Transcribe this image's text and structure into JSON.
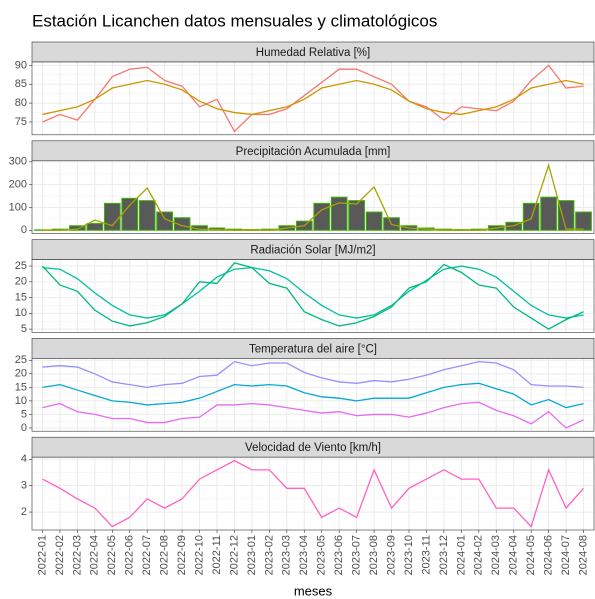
{
  "chart_data": {
    "type": "line",
    "title": "Estación Licanchen datos mensuales y climatológicos",
    "x_label": "meses",
    "categories": [
      "2022-01",
      "2022-02",
      "2022-03",
      "2022-04",
      "2022-05",
      "2022-06",
      "2022-07",
      "2022-08",
      "2022-09",
      "2022-10",
      "2022-11",
      "2022-12",
      "2023-01",
      "2023-02",
      "2023-03",
      "2023-04",
      "2023-05",
      "2023-06",
      "2023-07",
      "2023-08",
      "2023-09",
      "2023-10",
      "2023-11",
      "2023-12",
      "2024-01",
      "2024-02",
      "2024-03",
      "2024-04",
      "2024-05",
      "2024-06",
      "2024-07",
      "2024-08"
    ],
    "grid": true,
    "panels": [
      {
        "title": "Humedad Relativa [%]",
        "ylim": [
          71.6,
          90.9
        ],
        "yticks": [
          75,
          80,
          85,
          90
        ],
        "series": [
          {
            "type": "line",
            "color": "#F8766D",
            "values": [
              75,
              77,
              75.5,
              81,
              87,
              89,
              89.5,
              86,
              84.5,
              79,
              81,
              72.5,
              77,
              77,
              78.5,
              82,
              85.5,
              89,
              89,
              87,
              85,
              80.5,
              79,
              75.5,
              79,
              78.5,
              78,
              80.5,
              86,
              90,
              84,
              84.5
            ]
          },
          {
            "type": "line",
            "color": "#CD9600",
            "values": [
              77,
              78,
              79,
              81,
              84,
              85,
              86,
              85,
              83.5,
              80.5,
              78.5,
              77.5,
              77,
              78,
              79,
              81,
              84,
              85,
              86,
              85,
              83.5,
              80.5,
              78.5,
              77.5,
              77,
              78,
              79,
              81,
              84,
              85,
              86,
              85
            ]
          }
        ]
      },
      {
        "title": "Precipitación Acumulada [mm]",
        "ylim": [
          -14.5,
          304.5
        ],
        "yticks": [
          0,
          100,
          200,
          300
        ],
        "series": [
          {
            "type": "bar",
            "color": "#595959",
            "border": "#39B600",
            "values": [
              2,
              5,
              20,
              30,
              118,
              140,
              130,
              80,
              55,
              20,
              10,
              5,
              3,
              5,
              20,
              40,
              118,
              145,
              130,
              80,
              55,
              20,
              10,
              5,
              3,
              5,
              20,
              35,
              118,
              145,
              130,
              80
            ]
          },
          {
            "type": "line",
            "color": "#A3A500",
            "values": [
              0,
              0,
              5,
              45,
              20,
              110,
              185,
              50,
              20,
              5,
              2,
              0,
              0,
              0,
              10,
              20,
              90,
              120,
              115,
              190,
              25,
              10,
              5,
              0,
              0,
              0,
              10,
              20,
              50,
              285,
              5,
              5
            ]
          }
        ]
      },
      {
        "title": "Radiación Solar [MJ/m2]",
        "ylim": [
          3.95,
          27.05
        ],
        "yticks": [
          5,
          10,
          15,
          20,
          25
        ],
        "series": [
          {
            "type": "line",
            "color": "#00BFA0",
            "values": [
              24.5,
              24,
              21,
              16.5,
              12.5,
              9.5,
              8.5,
              9.5,
              13,
              17,
              21.5,
              24,
              24.5,
              23.5,
              21,
              16.5,
              12.5,
              9.5,
              8.5,
              9.5,
              12.5,
              17,
              20.5,
              24,
              25,
              24,
              21.5,
              17,
              12.5,
              9.5,
              8.5,
              9.5
            ]
          },
          {
            "type": "line",
            "color": "#00BA7A",
            "values": [
              25,
              19,
              17,
              11,
              7.5,
              6,
              7,
              9,
              13,
              20,
              19.5,
              26,
              24.5,
              19.5,
              18,
              10.5,
              8,
              6,
              7,
              9,
              12,
              18,
              20,
              25.5,
              23,
              19,
              18,
              12,
              8.5,
              5,
              8,
              10.5
            ]
          }
        ]
      },
      {
        "title": "Temperatura del aire [°C]",
        "ylim": [
          -1.2,
          25.7
        ],
        "yticks": [
          0,
          5,
          10,
          15,
          20,
          25
        ],
        "series": [
          {
            "type": "line",
            "color": "#9590FF",
            "values": [
              22.5,
              23,
              22.5,
              20,
              17,
              16,
              15,
              16,
              16.5,
              19,
              19.5,
              24.5,
              23,
              24,
              24,
              20.5,
              18.5,
              17,
              16.5,
              17.5,
              17,
              18,
              19.5,
              21.5,
              23,
              24.5,
              24,
              21.5,
              16,
              15.5,
              15.5,
              15
            ]
          },
          {
            "type": "line",
            "color": "#00A9D6",
            "values": [
              15,
              16,
              14,
              12,
              10,
              9.5,
              8.5,
              9,
              9.5,
              11,
              13.5,
              16,
              15.5,
              16,
              15.5,
              13,
              11.5,
              11,
              10,
              11,
              11,
              11,
              13,
              15,
              16,
              16.5,
              14.5,
              12.5,
              8.5,
              10.5,
              7.5,
              9
            ]
          },
          {
            "type": "line",
            "color": "#E76BF3",
            "values": [
              7.5,
              9,
              6,
              5,
              3.5,
              3.5,
              2,
              2,
              3.5,
              4,
              8.5,
              8.5,
              9,
              8.5,
              7.5,
              6.5,
              5.5,
              6,
              4.5,
              5,
              5,
              4,
              5.5,
              7.5,
              9,
              9.5,
              6.5,
              4.5,
              1.5,
              6,
              0,
              3
            ]
          }
        ]
      },
      {
        "title": "Velocidad de Viento [km/h]",
        "ylim": [
          1.32,
          4.08
        ],
        "yticks": [
          2,
          3,
          4
        ],
        "series": [
          {
            "type": "line",
            "color": "#FF61C3",
            "values": [
              3.25,
              2.9,
              2.5,
              2.15,
              1.45,
              1.8,
              2.5,
              2.15,
              2.5,
              3.25,
              3.6,
              3.95,
              3.6,
              3.6,
              2.9,
              2.9,
              1.8,
              2.15,
              1.8,
              3.6,
              2.15,
              2.9,
              3.25,
              3.6,
              3.25,
              3.25,
              2.15,
              2.15,
              1.45,
              3.6,
              2.15,
              2.9
            ]
          }
        ]
      }
    ]
  }
}
